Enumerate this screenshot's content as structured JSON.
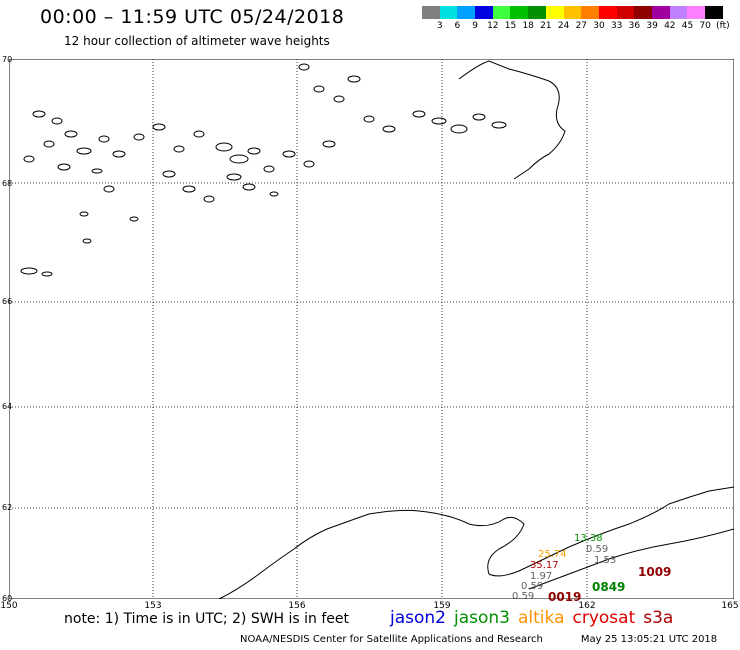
{
  "header": {
    "title": "00:00 – 11:59 UTC 05/24/2018",
    "subtitle": "12 hour collection of altimeter wave heights"
  },
  "colorbar": {
    "colors": [
      "#808080",
      "#00e0e0",
      "#00a0ff",
      "#0000e0",
      "#40ff40",
      "#00c000",
      "#009000",
      "#ffff00",
      "#ffc000",
      "#ff8000",
      "#ff0000",
      "#d00000",
      "#900000",
      "#a000a0",
      "#c080ff",
      "#ff80ff",
      "#000000"
    ],
    "labels": [
      "3",
      "6",
      "9",
      "12",
      "15",
      "18",
      "21",
      "24",
      "27",
      "30",
      "33",
      "36",
      "39",
      "42",
      "45",
      "70",
      "(ft)"
    ]
  },
  "map": {
    "lat_labels": [
      "70",
      "68",
      "66",
      "64",
      "62",
      "60"
    ],
    "lon_labels": [
      "150",
      "153",
      "156",
      "159",
      "162",
      "165"
    ],
    "observations": [
      {
        "text": "13.38",
        "color": "#009000",
        "big": false
      },
      {
        "text": "0.59",
        "color": "#606060",
        "big": false
      },
      {
        "text": "25.74",
        "color": "#ffa000",
        "big": false
      },
      {
        "text": "35.17",
        "color": "#b00000",
        "big": false
      },
      {
        "text": "1.53",
        "color": "#606060",
        "big": false
      },
      {
        "text": "1.97",
        "color": "#606060",
        "big": false
      },
      {
        "text": "0.59",
        "color": "#606060",
        "big": false
      },
      {
        "text": "0.59",
        "color": "#606060",
        "big": false
      },
      {
        "text": "0849",
        "color": "#008000",
        "big": true
      },
      {
        "text": "0019",
        "color": "#900000",
        "big": true
      },
      {
        "text": "1009",
        "color": "#900000",
        "big": true
      }
    ]
  },
  "note": "note: 1) Time is in UTC; 2) SWH is in feet",
  "satellites": [
    {
      "name": "jason2",
      "color": "#0000e0"
    },
    {
      "name": "jason3",
      "color": "#009000"
    },
    {
      "name": "altika",
      "color": "#ff9000"
    },
    {
      "name": "cryosat",
      "color": "#e00000"
    },
    {
      "name": "s3a",
      "color": "#b00000"
    }
  ],
  "footer": {
    "org": "NOAA/NESDIS Center for Satellite Applications and Research",
    "timestamp": "May 25 13:05:21 UTC 2018"
  }
}
